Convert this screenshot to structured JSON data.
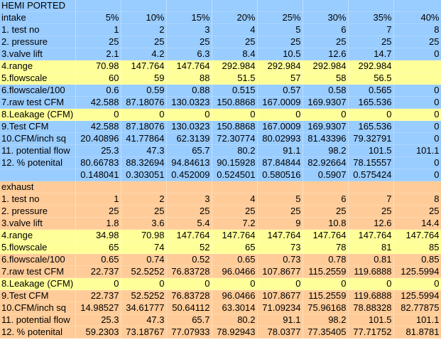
{
  "colors": {
    "intake": "#99ccff",
    "exhaust": "#ffcc99",
    "highlight": "#ffff99"
  },
  "rows": [
    {
      "band": "blue",
      "label": "HEMI PORTED",
      "cells": []
    },
    {
      "band": "blue",
      "label": "intake",
      "cells": [
        "5%",
        "10%",
        "15%",
        "20%",
        "25%",
        "30%",
        "35%",
        "40%"
      ]
    },
    {
      "band": "blue",
      "label": "1. test no",
      "cells": [
        "1",
        "2",
        "3",
        "4",
        "5",
        "6",
        "7",
        "8"
      ]
    },
    {
      "band": "blue",
      "label": "2. pressure",
      "cells": [
        "25",
        "25",
        "25",
        "25",
        "25",
        "25",
        "25",
        "25"
      ]
    },
    {
      "band": "blue",
      "label": "3.valve lift",
      "cells": [
        "2.1",
        "4.2",
        "6.3",
        "8.4",
        "10.5",
        "12.6",
        "14.7",
        "0"
      ]
    },
    {
      "band": "yellow",
      "label": "4.range",
      "cells": [
        "70.98",
        "147.764",
        "147.764",
        "292.984",
        "292.984",
        "292.984",
        "292.984",
        ""
      ]
    },
    {
      "band": "yellow",
      "label": "5.flowscale",
      "cells": [
        "60",
        "59",
        "88",
        "51.5",
        "57",
        "58",
        "56.5",
        ""
      ]
    },
    {
      "band": "blue",
      "label": "6.flowscale/100",
      "cells": [
        "0.6",
        "0.59",
        "0.88",
        "0.515",
        "0.57",
        "0.58",
        "0.565",
        "0"
      ]
    },
    {
      "band": "blue",
      "label": "7.raw test CFM",
      "cells": [
        "42.588",
        "87.18076",
        "130.0323",
        "150.8868",
        "167.0009",
        "169.9307",
        "165.536",
        "0"
      ]
    },
    {
      "band": "yellow",
      "label": "8.Leakage (CFM)",
      "cells": [
        "0",
        "0",
        "0",
        "0",
        "0",
        "0",
        "0",
        "0"
      ]
    },
    {
      "band": "blue",
      "label": "9.Test CFM",
      "cells": [
        "42.588",
        "87.18076",
        "130.0323",
        "150.8868",
        "167.0009",
        "169.9307",
        "165.536",
        "0"
      ]
    },
    {
      "band": "blue",
      "label": "10.CFM/inch sq",
      "cells": [
        "20.40896",
        "41.77864",
        "62.3139",
        "72.30774",
        "80.02993",
        "81.43396",
        "79.32791",
        "0"
      ]
    },
    {
      "band": "blue",
      "label": "11. potential flow",
      "cells": [
        "25.3",
        "47.3",
        "65.7",
        "80.2",
        "91.1",
        "98.2",
        "101.5",
        "101.1"
      ]
    },
    {
      "band": "blue",
      "label": "12. % potenital",
      "cells": [
        "80.66783",
        "88.32694",
        "94.84613",
        "90.15928",
        "87.84844",
        "82.92664",
        "78.15557",
        "0"
      ]
    },
    {
      "band": "blue",
      "label": "",
      "cells": [
        "0.148041",
        "0.303051",
        "0.452009",
        "0.524501",
        "0.580516",
        "0.5907",
        "0.575424",
        "0"
      ]
    },
    {
      "band": "orange",
      "label": "exhaust",
      "cells": []
    },
    {
      "band": "orange",
      "label": "1. test no",
      "cells": [
        "1",
        "2",
        "3",
        "4",
        "5",
        "6",
        "7",
        "8"
      ]
    },
    {
      "band": "orange",
      "label": "2. pressure",
      "cells": [
        "25",
        "25",
        "25",
        "25",
        "25",
        "25",
        "25",
        "25"
      ]
    },
    {
      "band": "orange",
      "label": "3.valve lift",
      "cells": [
        "1.8",
        "3.6",
        "5.4",
        "7.2",
        "9",
        "10.8",
        "12.6",
        "14.4"
      ]
    },
    {
      "band": "yellow",
      "label": "4.range",
      "cells": [
        "34.98",
        "70.98",
        "147.764",
        "147.764",
        "147.764",
        "147.764",
        "147.764",
        "147.764"
      ]
    },
    {
      "band": "yellow",
      "label": "5.flowscale",
      "cells": [
        "65",
        "74",
        "52",
        "65",
        "73",
        "78",
        "81",
        "85"
      ]
    },
    {
      "band": "orange",
      "label": "6.flowscale/100",
      "cells": [
        "0.65",
        "0.74",
        "0.52",
        "0.65",
        "0.73",
        "0.78",
        "0.81",
        "0.85"
      ]
    },
    {
      "band": "orange",
      "label": "7.raw test CFM",
      "cells": [
        "22.737",
        "52.5252",
        "76.83728",
        "96.0466",
        "107.8677",
        "115.2559",
        "119.6888",
        "125.5994"
      ]
    },
    {
      "band": "yellow",
      "label": "8.Leakage (CFM)",
      "cells": [
        "0",
        "0",
        "0",
        "0",
        "0",
        "0",
        "0",
        "0"
      ]
    },
    {
      "band": "orange",
      "label": "9.Test CFM",
      "cells": [
        "22.737",
        "52.5252",
        "76.83728",
        "96.0466",
        "107.8677",
        "115.2559",
        "119.6888",
        "125.5994"
      ]
    },
    {
      "band": "orange",
      "label": "10.CFM/inch sq",
      "cells": [
        "14.98527",
        "34.61777",
        "50.64112",
        "63.3014",
        "71.09234",
        "75.96168",
        "78.88328",
        "82.77875"
      ]
    },
    {
      "band": "orange",
      "label": "11. potential flow",
      "cells": [
        "25.3",
        "47.3",
        "65.7",
        "80.2",
        "91.1",
        "98.2",
        "101.5",
        "101.1"
      ]
    },
    {
      "band": "orange",
      "label": "12. % potenital",
      "cells": [
        "59.2303",
        "73.18767",
        "77.07933",
        "78.92943",
        "78.0377",
        "77.35405",
        "77.71752",
        "81.8781"
      ]
    }
  ]
}
